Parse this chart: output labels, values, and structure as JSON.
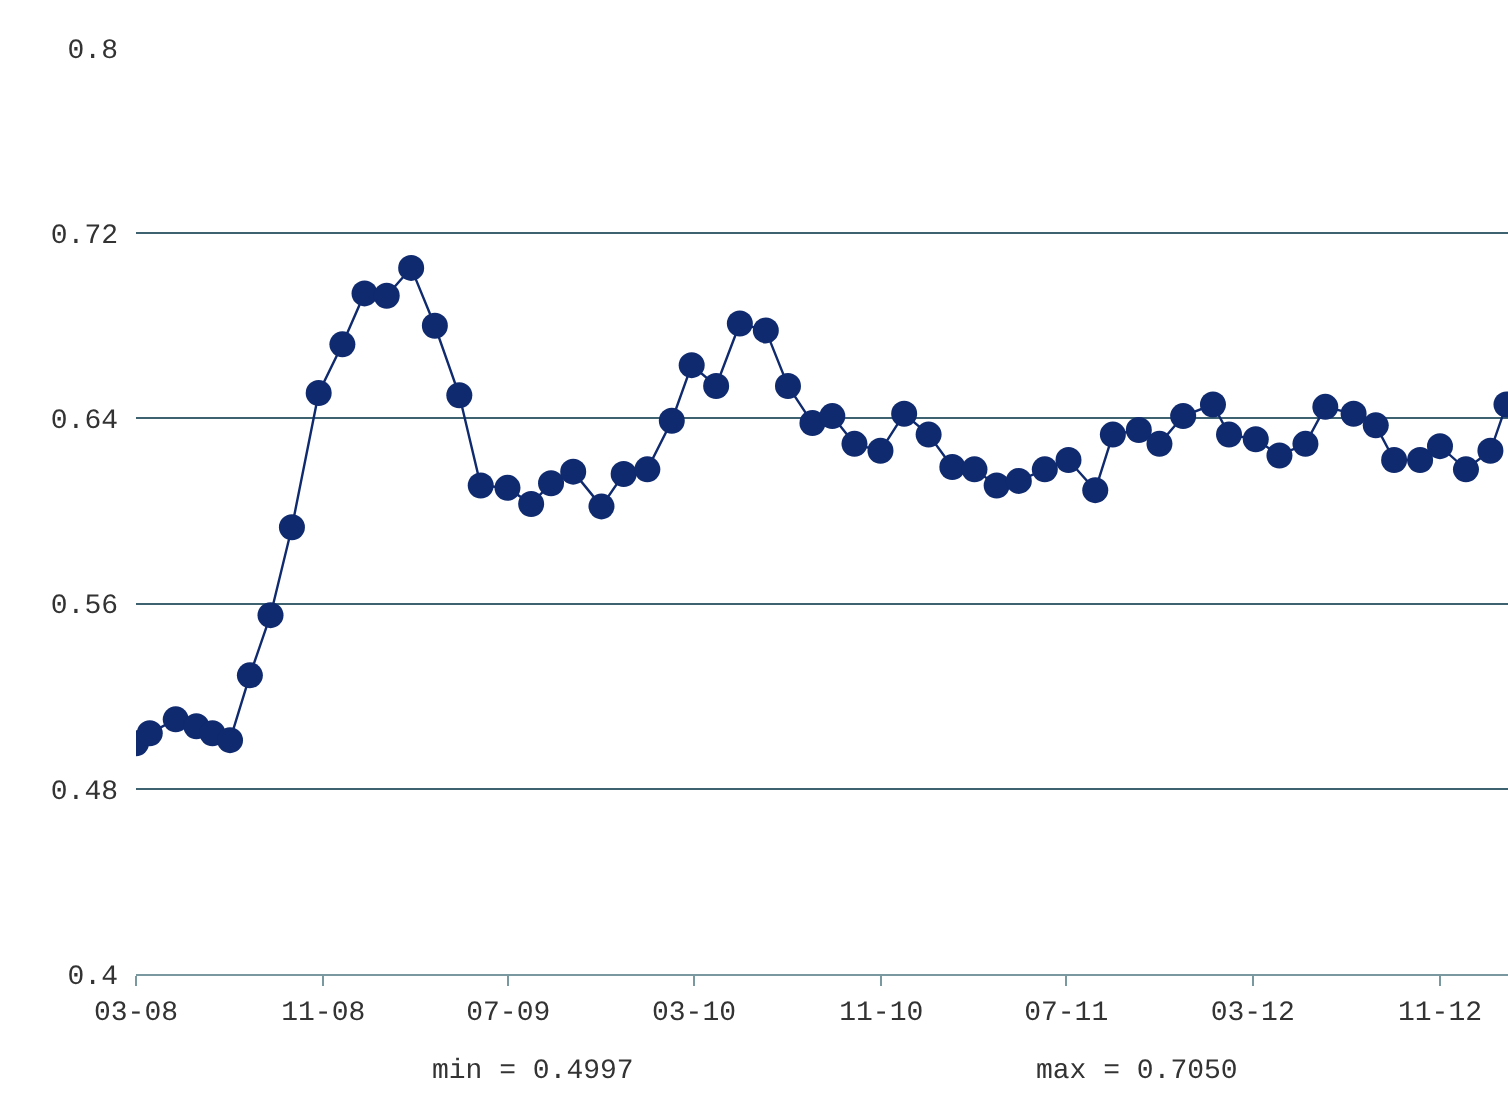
{
  "chart_data": {
    "type": "line",
    "x": [
      "2008-03-01",
      "2008-03-19",
      "2008-04-22",
      "2008-05-19",
      "2008-06-09",
      "2008-07-02",
      "2008-07-28",
      "2008-08-24",
      "2008-09-21",
      "2008-10-26",
      "2008-11-26",
      "2008-12-25",
      "2009-01-23",
      "2009-02-24",
      "2009-03-27",
      "2009-04-28",
      "2009-05-26",
      "2009-06-30",
      "2009-07-31",
      "2009-08-26",
      "2009-09-24",
      "2009-10-31",
      "2009-11-29",
      "2009-12-30",
      "2010-01-31",
      "2010-02-26",
      "2010-03-30",
      "2010-04-30",
      "2010-06-03",
      "2010-07-02",
      "2010-08-03",
      "2010-08-29",
      "2010-09-27",
      "2010-10-31",
      "2010-12-01",
      "2011-01-02",
      "2011-02-02",
      "2011-03-03",
      "2011-04-01",
      "2011-04-30",
      "2011-06-03",
      "2011-07-04",
      "2011-08-08",
      "2011-08-31",
      "2011-10-04",
      "2011-10-31",
      "2011-12-01",
      "2012-01-09",
      "2012-01-30",
      "2012-03-05",
      "2012-04-05",
      "2012-05-09",
      "2012-06-04",
      "2012-07-11",
      "2012-08-09",
      "2012-09-02",
      "2012-10-06",
      "2012-11-01",
      "2012-12-05",
      "2013-01-06",
      "2013-01-27"
    ],
    "series": [
      {
        "color": "#0f2a6e",
        "values": [
          0.4997,
          0.504,
          0.51,
          0.507,
          0.504,
          0.501,
          0.529,
          0.555,
          0.593,
          0.651,
          0.672,
          0.694,
          0.693,
          0.705,
          0.68,
          0.65,
          0.611,
          0.61,
          0.603,
          0.612,
          0.617,
          0.602,
          0.616,
          0.618,
          0.639,
          0.663,
          0.654,
          0.681,
          0.678,
          0.654,
          0.638,
          0.641,
          0.629,
          0.626,
          0.642,
          0.633,
          0.619,
          0.618,
          0.611,
          0.613,
          0.618,
          0.622,
          0.609,
          0.633,
          0.635,
          0.629,
          0.641,
          0.646,
          0.633,
          0.631,
          0.624,
          0.629,
          0.645,
          0.642,
          0.637,
          0.622,
          0.622,
          0.628,
          0.618,
          0.626,
          0.646
        ]
      }
    ],
    "xlim": [
      "2008-03-01",
      "2013-01-29"
    ],
    "xticks": [
      {
        "value": "2008-03-01",
        "label": "03-08"
      },
      {
        "value": "2008-11-01",
        "label": "11-08"
      },
      {
        "value": "2009-07-01",
        "label": "07-09"
      },
      {
        "value": "2010-03-01",
        "label": "03-10"
      },
      {
        "value": "2010-11-01",
        "label": "11-10"
      },
      {
        "value": "2011-07-01",
        "label": "07-11"
      },
      {
        "value": "2012-03-01",
        "label": "03-12"
      },
      {
        "value": "2012-11-01",
        "label": "11-12"
      }
    ],
    "ylim": [
      0.4,
      0.8
    ],
    "yticks": [
      {
        "value": 0.4,
        "label": "0.4"
      },
      {
        "value": 0.48,
        "label": "0.48"
      },
      {
        "value": 0.56,
        "label": "0.56"
      },
      {
        "value": 0.64,
        "label": "0.64"
      },
      {
        "value": 0.72,
        "label": "0.72"
      },
      {
        "value": 0.8,
        "label": "0.8"
      }
    ],
    "grid": "y",
    "marker": "circle",
    "line_style": "solid",
    "annotations": [
      "min = 0.4997",
      "max = 0.7050"
    ]
  }
}
